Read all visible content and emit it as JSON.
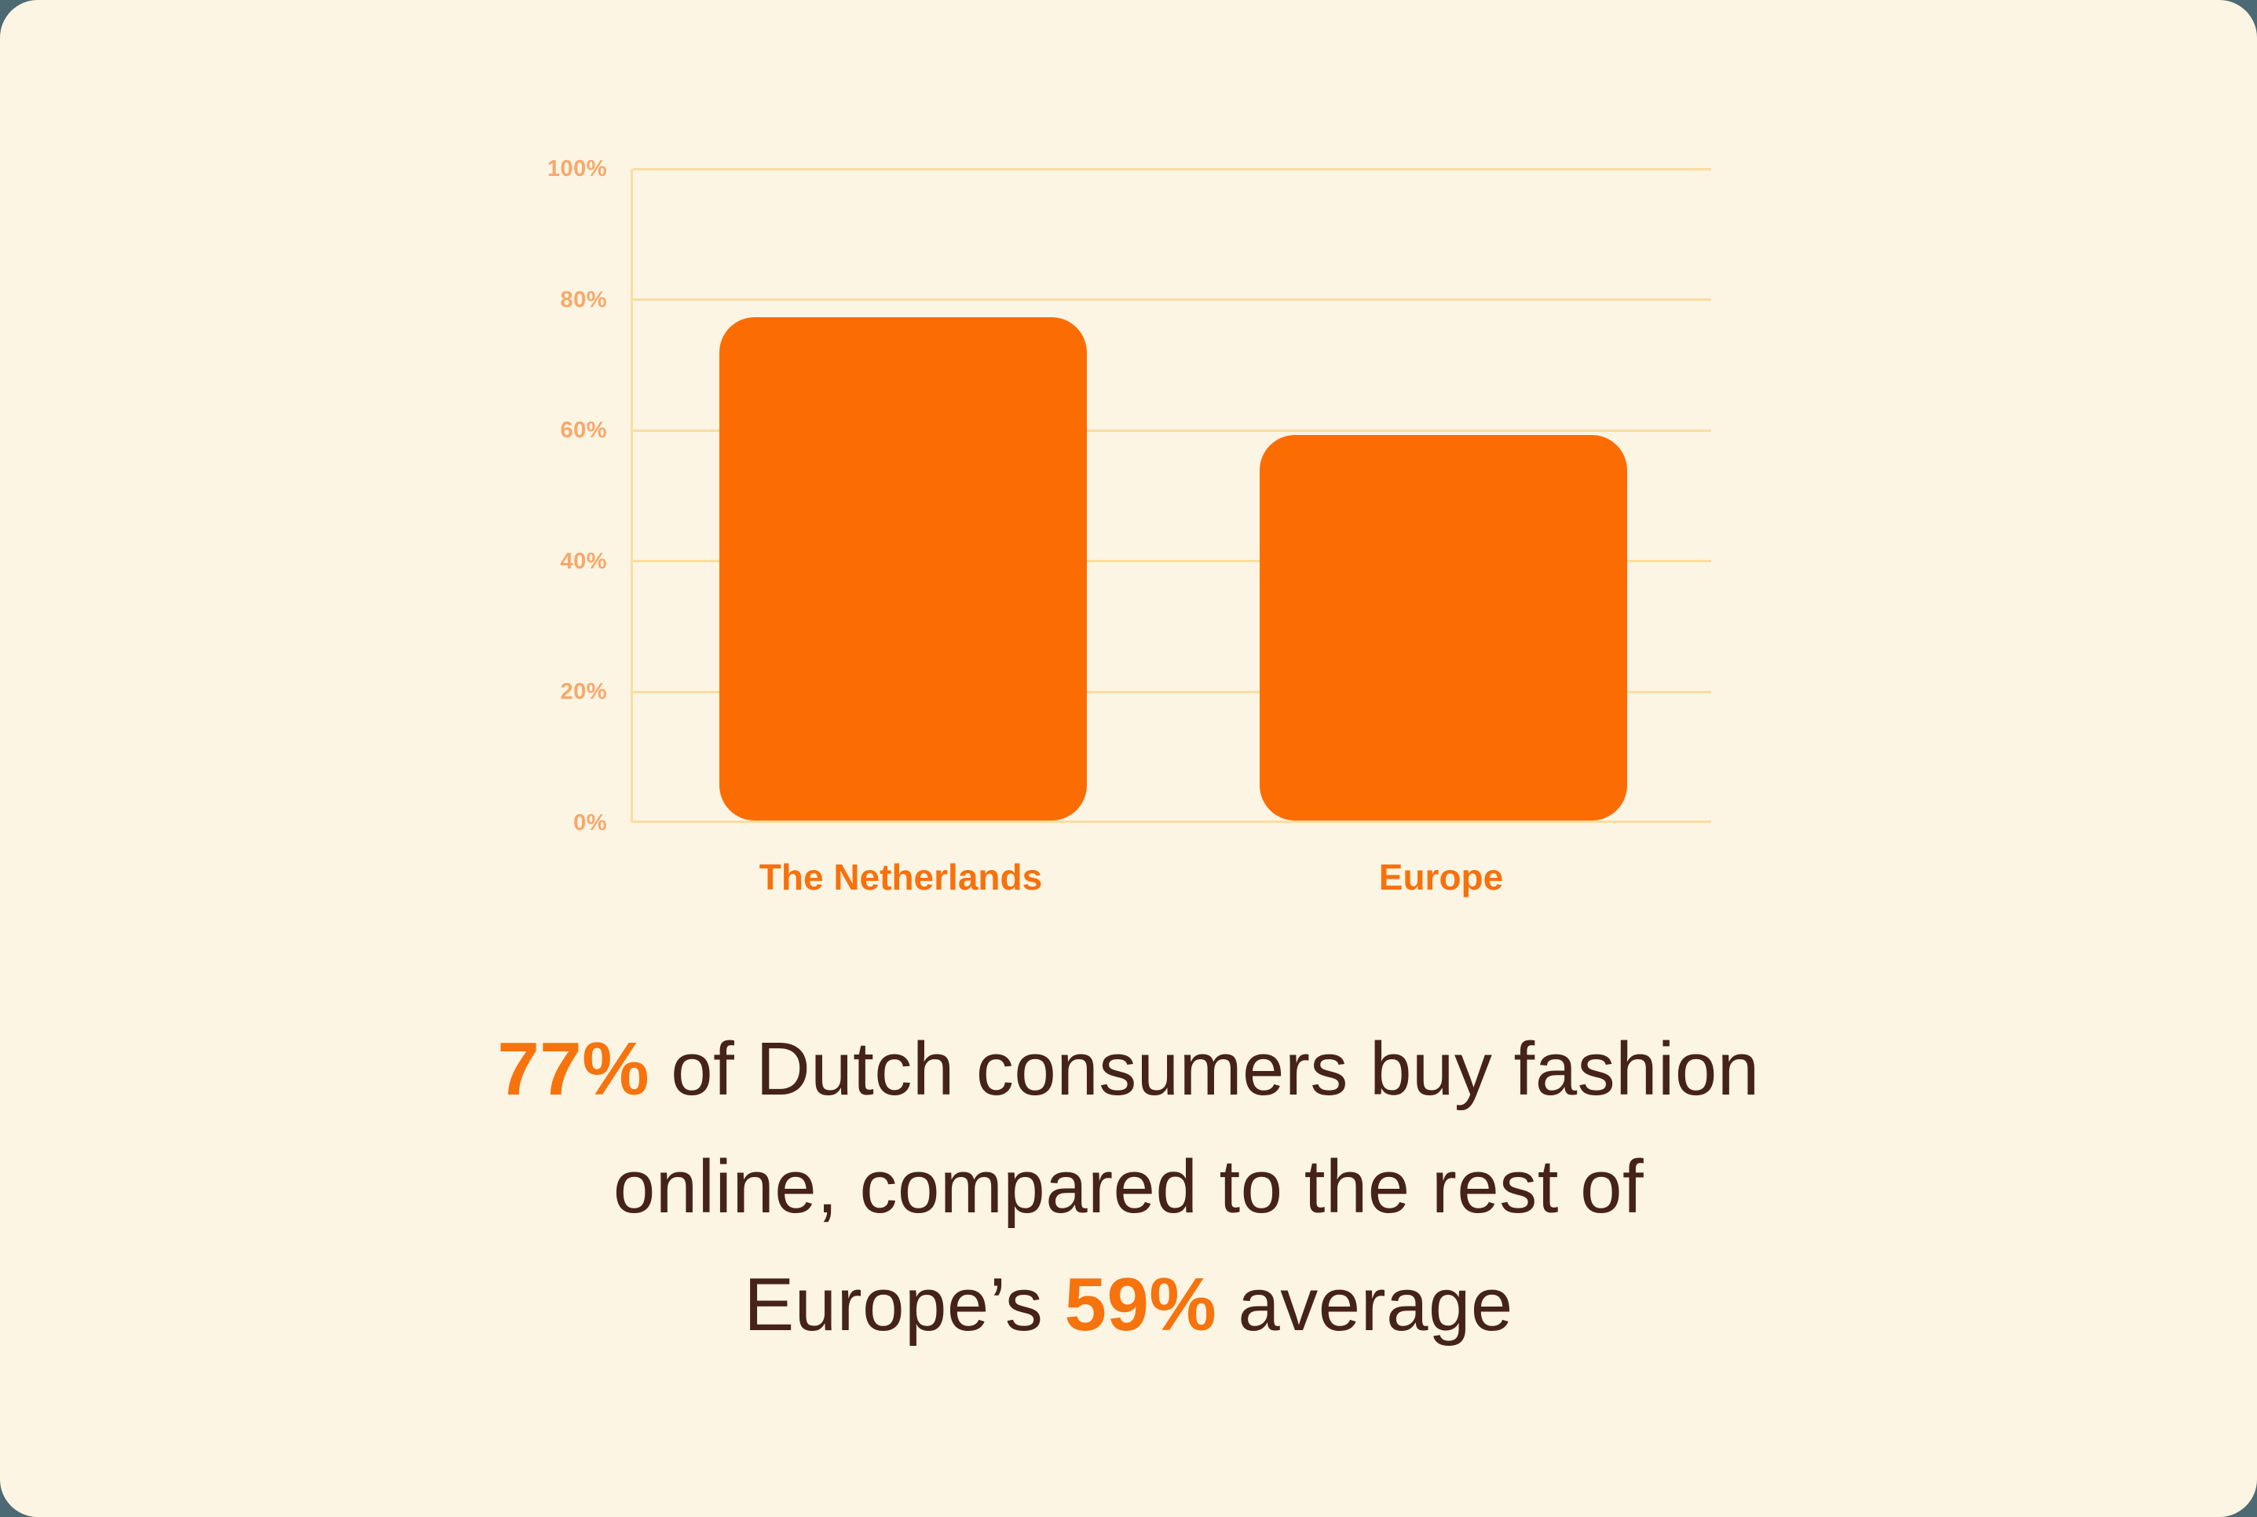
{
  "colors": {
    "page_bg": "#4d6974",
    "card_bg": "#fcf5e3",
    "bar": "#fb6d03",
    "grid": "#fbdda1",
    "tick_label": "#f9a76a",
    "category_label": "#f7710c",
    "text": "#45221b",
    "highlight": "#f7730d"
  },
  "chart_data": {
    "type": "bar",
    "categories": [
      "The Netherlands",
      "Europe"
    ],
    "values": [
      77,
      59
    ],
    "title": "",
    "xlabel": "",
    "ylabel": "",
    "ylim": [
      0,
      100
    ],
    "yticks": [
      "0%",
      "20%",
      "40%",
      "60%",
      "80%",
      "100%"
    ],
    "grid": true,
    "legend": "none"
  },
  "caption": {
    "lines": [
      [
        {
          "text": "77%",
          "highlight": true
        },
        {
          "text": " of Dutch consumers buy fashion",
          "highlight": false
        }
      ],
      [
        {
          "text": "online, compared to the rest of",
          "highlight": false
        }
      ],
      [
        {
          "text": "Europe’s ",
          "highlight": false
        },
        {
          "text": "59%",
          "highlight": true
        },
        {
          "text": " average",
          "highlight": false
        }
      ]
    ]
  }
}
